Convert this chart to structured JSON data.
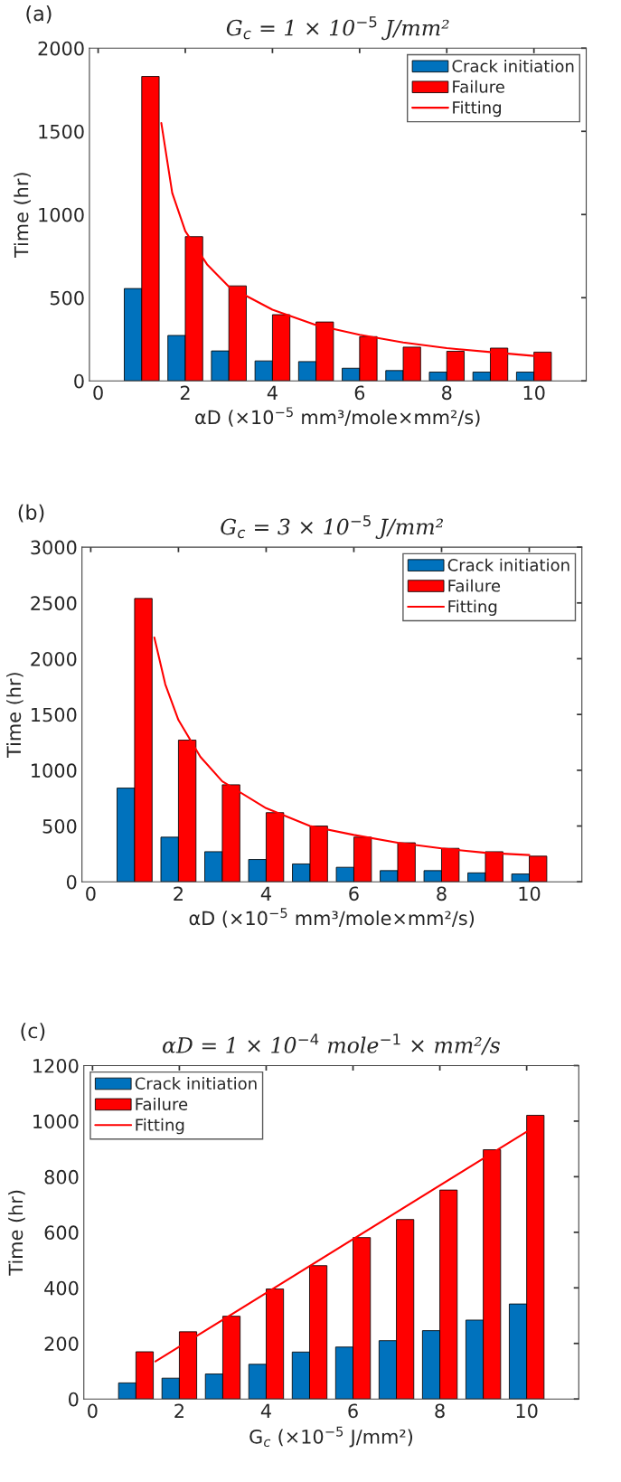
{
  "chart_data": [
    {
      "type": "bar",
      "title": "G$_{c}$ = 1 × 10$^{−5}$ J/mm²",
      "xlabel": "αD (×10$^{−5}$ mm³/mole×mm²/s)",
      "ylabel": "Time (hr)",
      "annotations": [
        "(a)"
      ],
      "x": [
        1,
        2,
        3,
        4,
        5,
        6,
        7,
        8,
        9,
        10
      ],
      "xlim": [
        -0.2,
        11.2
      ],
      "xticks": [
        0,
        2,
        4,
        6,
        8,
        10
      ],
      "ylim": [
        0,
        2000
      ],
      "yticks": [
        0,
        500,
        1000,
        1500,
        2000
      ],
      "legend": "top right",
      "grid": false,
      "series": [
        {
          "name": "Crack initiation",
          "color": "#0072bd",
          "values": [
            555,
            273,
            180,
            120,
            116,
            76,
            62,
            53,
            53,
            53
          ]
        },
        {
          "name": "Failure",
          "color": "#ff0000",
          "values": [
            1830,
            867,
            571,
            398,
            354,
            266,
            203,
            178,
            197,
            173
          ]
        },
        {
          "name": "Fitting",
          "type": "line",
          "color": "#ff0000",
          "x": [
            1.45,
            1.7,
            2,
            2.5,
            3,
            4,
            5,
            6,
            7,
            8,
            9,
            10
          ],
          "values": [
            1550,
            1130,
            900,
            700,
            566,
            428,
            335,
            277,
            231,
            197,
            173,
            150
          ]
        }
      ]
    },
    {
      "type": "bar",
      "title": "G$_{c}$ = 3 × 10$^{−5}$ J/mm²",
      "xlabel": "αD (×10$^{−5}$ mm³/mole×mm²/s)",
      "ylabel": "Time (hr)",
      "annotations": [
        "(b)"
      ],
      "x": [
        1,
        2,
        3,
        4,
        5,
        6,
        7,
        8,
        9,
        10
      ],
      "xlim": [
        -0.2,
        11.2
      ],
      "xticks": [
        0,
        2,
        4,
        6,
        8,
        10
      ],
      "ylim": [
        0,
        3000
      ],
      "yticks": [
        0,
        500,
        1000,
        1500,
        2000,
        2500,
        3000
      ],
      "legend": "top right",
      "grid": false,
      "series": [
        {
          "name": "Crack initiation",
          "color": "#0072bd",
          "values": [
            840,
            400,
            270,
            200,
            160,
            130,
            100,
            100,
            80,
            70
          ]
        },
        {
          "name": "Failure",
          "color": "#ff0000",
          "values": [
            2540,
            1270,
            870,
            620,
            500,
            400,
            350,
            300,
            270,
            230
          ]
        },
        {
          "name": "Fitting",
          "type": "line",
          "color": "#ff0000",
          "x": [
            1.45,
            1.7,
            2,
            2.5,
            3,
            4,
            5,
            6,
            7,
            8,
            9,
            10
          ],
          "values": [
            2190,
            1770,
            1450,
            1120,
            900,
            660,
            500,
            420,
            350,
            300,
            260,
            240
          ]
        }
      ]
    },
    {
      "type": "bar",
      "title": "αD = 1 × 10$^{−4}$ mole$^{−1}$ × mm²/s",
      "xlabel": "G$_{c}$ (×10$^{−5}$ J/mm²)",
      "ylabel": "Time (hr)",
      "annotations": [
        "(c)"
      ],
      "x": [
        1,
        2,
        3,
        4,
        5,
        6,
        7,
        8,
        9,
        10
      ],
      "xlim": [
        -0.2,
        11.2
      ],
      "xticks": [
        0,
        2,
        4,
        6,
        8,
        10
      ],
      "ylim": [
        0,
        1200
      ],
      "yticks": [
        0,
        200,
        400,
        600,
        800,
        1000,
        1200
      ],
      "legend": "top left",
      "grid": false,
      "series": [
        {
          "name": "Crack initiation",
          "color": "#0072bd",
          "values": [
            58,
            75,
            90,
            125,
            169,
            187,
            210,
            246,
            284,
            342
          ]
        },
        {
          "name": "Failure",
          "color": "#ff0000",
          "values": [
            170,
            242,
            298,
            396,
            480,
            581,
            646,
            752,
            897,
            1021
          ]
        },
        {
          "name": "Fitting",
          "type": "line",
          "color": "#ff0000",
          "x": [
            1.45,
            10
          ],
          "values": [
            135,
            962
          ]
        }
      ]
    }
  ]
}
